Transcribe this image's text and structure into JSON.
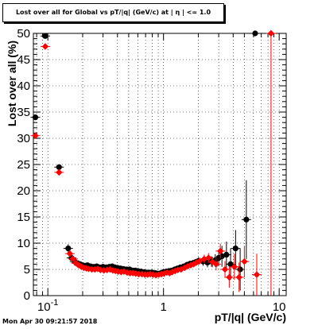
{
  "chart_data": {
    "type": "scatter",
    "title": "Lost over all for Global vs pT/|q| (GeV/c) at | η | <= 1.0",
    "xlabel": "pT/|q| (GeV/c)",
    "ylabel": "Lost over all (%)",
    "x_scale": "log",
    "xlim": [
      0.075,
      11.5
    ],
    "ylim": [
      0,
      50
    ],
    "x_tick_labels": [
      "10^-1",
      "1",
      "10"
    ],
    "y_tick_labels": [
      "0",
      "5",
      "10",
      "15",
      "20",
      "25",
      "30",
      "35",
      "40",
      "45",
      "50"
    ],
    "grid": true,
    "series": [
      {
        "color": "#000000",
        "marker": "circle",
        "x": [
          0.078,
          0.095,
          0.125,
          0.15,
          0.16,
          0.17,
          0.18,
          0.19,
          0.2,
          0.21,
          0.22,
          0.235,
          0.25,
          0.265,
          0.28,
          0.3,
          0.32,
          0.34,
          0.36,
          0.38,
          0.4,
          0.425,
          0.45,
          0.48,
          0.51,
          0.54,
          0.57,
          0.6,
          0.64,
          0.68,
          0.72,
          0.76,
          0.8,
          0.85,
          0.9,
          0.95,
          1.0,
          1.06,
          1.12,
          1.18,
          1.25,
          1.32,
          1.4,
          1.5,
          1.6,
          1.7,
          1.8,
          1.9,
          2.0,
          2.2,
          2.4,
          2.6,
          2.8,
          3.0,
          3.2,
          3.5,
          3.8,
          4.2,
          4.6,
          5.2,
          6.2
        ],
        "y": [
          34.0,
          49.5,
          24.5,
          9.0,
          7.2,
          6.5,
          6.2,
          6.0,
          5.8,
          5.7,
          5.8,
          5.6,
          5.5,
          5.6,
          5.4,
          5.5,
          5.4,
          5.5,
          5.6,
          5.4,
          5.3,
          5.2,
          5.1,
          5.0,
          5.0,
          4.8,
          4.8,
          4.7,
          4.6,
          4.5,
          4.4,
          4.4,
          4.4,
          4.3,
          4.2,
          4.3,
          4.5,
          4.6,
          4.7,
          4.8,
          5.0,
          5.2,
          5.4,
          5.6,
          5.9,
          6.1,
          6.2,
          6.4,
          6.6,
          6.5,
          6.3,
          6.5,
          6.7,
          7.2,
          7.5,
          7.8,
          6.0,
          9.0,
          5.0,
          14.5,
          50.0
        ],
        "err": [
          0,
          0,
          0,
          0.8,
          0.5,
          0.4,
          0.3,
          0.3,
          0.3,
          0.3,
          0.3,
          0.3,
          0.3,
          0.3,
          0.3,
          0.3,
          0.3,
          0.3,
          0.3,
          0.3,
          0.3,
          0.3,
          0.3,
          0.3,
          0.3,
          0.3,
          0.3,
          0.3,
          0.3,
          0.3,
          0.3,
          0.3,
          0.3,
          0.3,
          0.3,
          0.3,
          0.3,
          0.3,
          0.3,
          0.3,
          0.4,
          0.4,
          0.4,
          0.4,
          0.5,
          0.5,
          0.6,
          0.6,
          0.7,
          0.8,
          0.9,
          1.0,
          1.2,
          1.5,
          2.0,
          2.5,
          3.0,
          3.5,
          4.0,
          7.5,
          0
        ]
      },
      {
        "color": "#ff0000",
        "marker": "diamond",
        "x": [
          0.078,
          0.095,
          0.125,
          0.155,
          0.165,
          0.175,
          0.185,
          0.195,
          0.205,
          0.215,
          0.225,
          0.24,
          0.255,
          0.27,
          0.285,
          0.305,
          0.325,
          0.345,
          0.365,
          0.385,
          0.405,
          0.43,
          0.455,
          0.485,
          0.515,
          0.545,
          0.575,
          0.61,
          0.65,
          0.69,
          0.73,
          0.77,
          0.81,
          0.86,
          0.91,
          0.96,
          1.01,
          1.07,
          1.13,
          1.19,
          1.26,
          1.33,
          1.42,
          1.52,
          1.62,
          1.72,
          1.82,
          1.92,
          2.05,
          2.25,
          2.45,
          2.65,
          2.85,
          3.1,
          3.4,
          3.7,
          4.1,
          4.5,
          5.0,
          6.4,
          8.5
        ],
        "y": [
          30.5,
          47.5,
          23.5,
          8.0,
          7.0,
          6.2,
          5.8,
          5.5,
          5.3,
          5.2,
          5.1,
          5.0,
          5.0,
          5.1,
          4.9,
          4.8,
          4.9,
          5.0,
          4.8,
          4.7,
          4.6,
          4.5,
          4.6,
          4.4,
          4.3,
          4.3,
          4.2,
          4.1,
          4.1,
          4.0,
          4.0,
          4.1,
          4.0,
          3.9,
          4.0,
          4.1,
          4.2,
          4.4,
          4.3,
          4.5,
          4.7,
          4.9,
          5.0,
          5.3,
          5.6,
          5.8,
          6.0,
          6.3,
          6.6,
          7.0,
          7.2,
          6.4,
          6.0,
          8.5,
          5.0,
          3.5,
          5.5,
          3.5,
          6.5,
          4.0,
          50.0
        ],
        "err": [
          0,
          0,
          0,
          0.7,
          0.5,
          0.4,
          0.3,
          0.3,
          0.3,
          0.3,
          0.3,
          0.3,
          0.3,
          0.3,
          0.3,
          0.3,
          0.3,
          0.3,
          0.3,
          0.3,
          0.3,
          0.3,
          0.3,
          0.3,
          0.3,
          0.3,
          0.3,
          0.3,
          0.3,
          0.3,
          0.3,
          0.3,
          0.3,
          0.3,
          0.3,
          0.3,
          0.3,
          0.3,
          0.3,
          0.3,
          0.4,
          0.4,
          0.4,
          0.4,
          0.5,
          0.5,
          0.5,
          0.6,
          0.7,
          0.8,
          0.9,
          1.0,
          1.2,
          1.4,
          1.6,
          2.0,
          2.5,
          2.8,
          3.0,
          4.0,
          50.0
        ]
      }
    ]
  },
  "footer": {
    "timestamp": "Mon Apr 30 09:21:57 2018"
  }
}
